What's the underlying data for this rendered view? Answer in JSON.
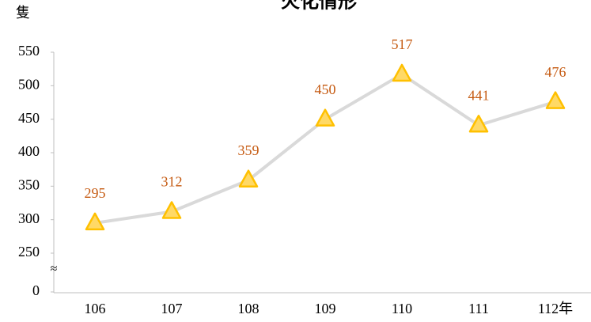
{
  "chart_data": {
    "type": "line",
    "title": "火化情形",
    "y_unit": "隻",
    "categories": [
      "106",
      "107",
      "108",
      "109",
      "110",
      "111",
      "112年"
    ],
    "values": [
      295,
      312,
      359,
      450,
      517,
      441,
      476
    ],
    "line_color": "#d9d9d9",
    "marker_color": "#ffd966",
    "marker_edge": "#ffc000",
    "label_color": "#c55a11",
    "ylim": [
      0,
      550
    ],
    "y_break": [
      0,
      250
    ],
    "break_label": "≈",
    "yticks": [
      0,
      250,
      300,
      350,
      400,
      450,
      500,
      550
    ],
    "grid": false
  }
}
